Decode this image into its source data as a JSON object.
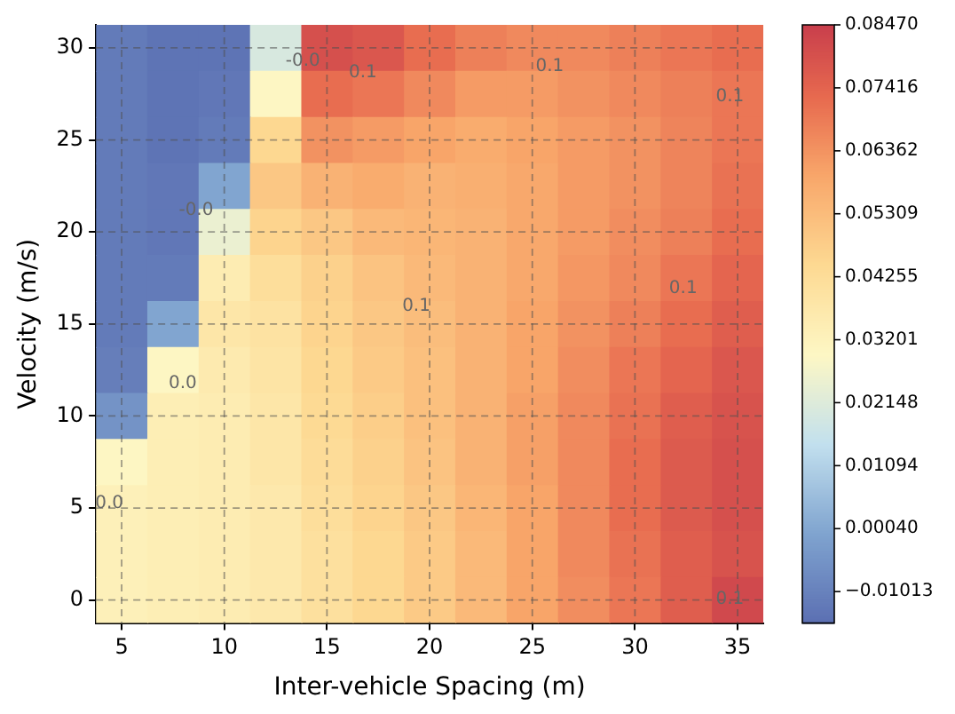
{
  "chart_data": {
    "type": "heatmap",
    "xlabel": "Inter-vehicle Spacing (m)",
    "ylabel": "Velocity (m/s)",
    "categories": [
      "5",
      null,
      "10",
      null,
      "15",
      null,
      "20",
      null,
      "25",
      null,
      "30",
      null,
      "35"
    ],
    "y_categories": [
      "30",
      null,
      "25",
      null,
      "20",
      null,
      "15",
      null,
      "10",
      null,
      "5",
      null,
      "0"
    ],
    "cells": [
      [
        -0.012,
        -0.014,
        -0.014,
        0.02,
        0.08,
        0.078,
        0.072,
        0.068,
        0.066,
        0.066,
        0.068,
        0.07,
        0.072
      ],
      [
        -0.012,
        -0.014,
        -0.013,
        0.03,
        0.072,
        0.07,
        0.066,
        0.062,
        0.062,
        0.064,
        0.066,
        0.068,
        0.07
      ],
      [
        -0.012,
        -0.014,
        -0.012,
        0.045,
        0.064,
        0.062,
        0.06,
        0.058,
        0.06,
        0.062,
        0.064,
        0.067,
        0.07
      ],
      [
        -0.012,
        -0.013,
        0.0,
        0.05,
        0.056,
        0.058,
        0.056,
        0.057,
        0.059,
        0.062,
        0.064,
        0.067,
        0.071
      ],
      [
        -0.012,
        -0.013,
        0.025,
        0.046,
        0.05,
        0.054,
        0.055,
        0.056,
        0.059,
        0.062,
        0.065,
        0.068,
        0.072
      ],
      [
        -0.012,
        -0.012,
        0.035,
        0.042,
        0.047,
        0.051,
        0.054,
        0.056,
        0.059,
        0.063,
        0.066,
        0.07,
        0.074
      ],
      [
        -0.012,
        0.0,
        0.038,
        0.04,
        0.046,
        0.05,
        0.053,
        0.056,
        0.06,
        0.064,
        0.068,
        0.072,
        0.076
      ],
      [
        -0.011,
        0.03,
        0.036,
        0.039,
        0.045,
        0.049,
        0.052,
        0.056,
        0.06,
        0.065,
        0.07,
        0.074,
        0.078
      ],
      [
        -0.005,
        0.034,
        0.035,
        0.038,
        0.044,
        0.048,
        0.052,
        0.056,
        0.061,
        0.066,
        0.071,
        0.076,
        0.079
      ],
      [
        0.03,
        0.034,
        0.035,
        0.038,
        0.043,
        0.047,
        0.051,
        0.056,
        0.061,
        0.066,
        0.072,
        0.077,
        0.08
      ],
      [
        0.033,
        0.034,
        0.035,
        0.037,
        0.042,
        0.046,
        0.05,
        0.055,
        0.06,
        0.066,
        0.072,
        0.077,
        0.08
      ],
      [
        0.033,
        0.034,
        0.035,
        0.037,
        0.041,
        0.045,
        0.049,
        0.054,
        0.06,
        0.066,
        0.071,
        0.076,
        0.079
      ],
      [
        0.033,
        0.034,
        0.035,
        0.037,
        0.041,
        0.045,
        0.049,
        0.054,
        0.06,
        0.065,
        0.07,
        0.076,
        0.082
      ]
    ],
    "clim": [
      -0.0154,
      0.0847
    ],
    "cticks": [
      -0.01013,
      {
        "value": 0.0004,
        "label": "0.00040"
      },
      0.01094,
      0.02148,
      0.03201,
      0.04255,
      0.05309,
      0.06362,
      0.07416,
      {
        "value": 0.0847,
        "label": "0.08470"
      }
    ],
    "grid": true,
    "annotations": [
      "-0.0",
      "-0.0",
      "0.0",
      "0.0",
      "0.1",
      "0.1",
      "0.1",
      "0.1",
      "0.1",
      "0.1"
    ]
  }
}
